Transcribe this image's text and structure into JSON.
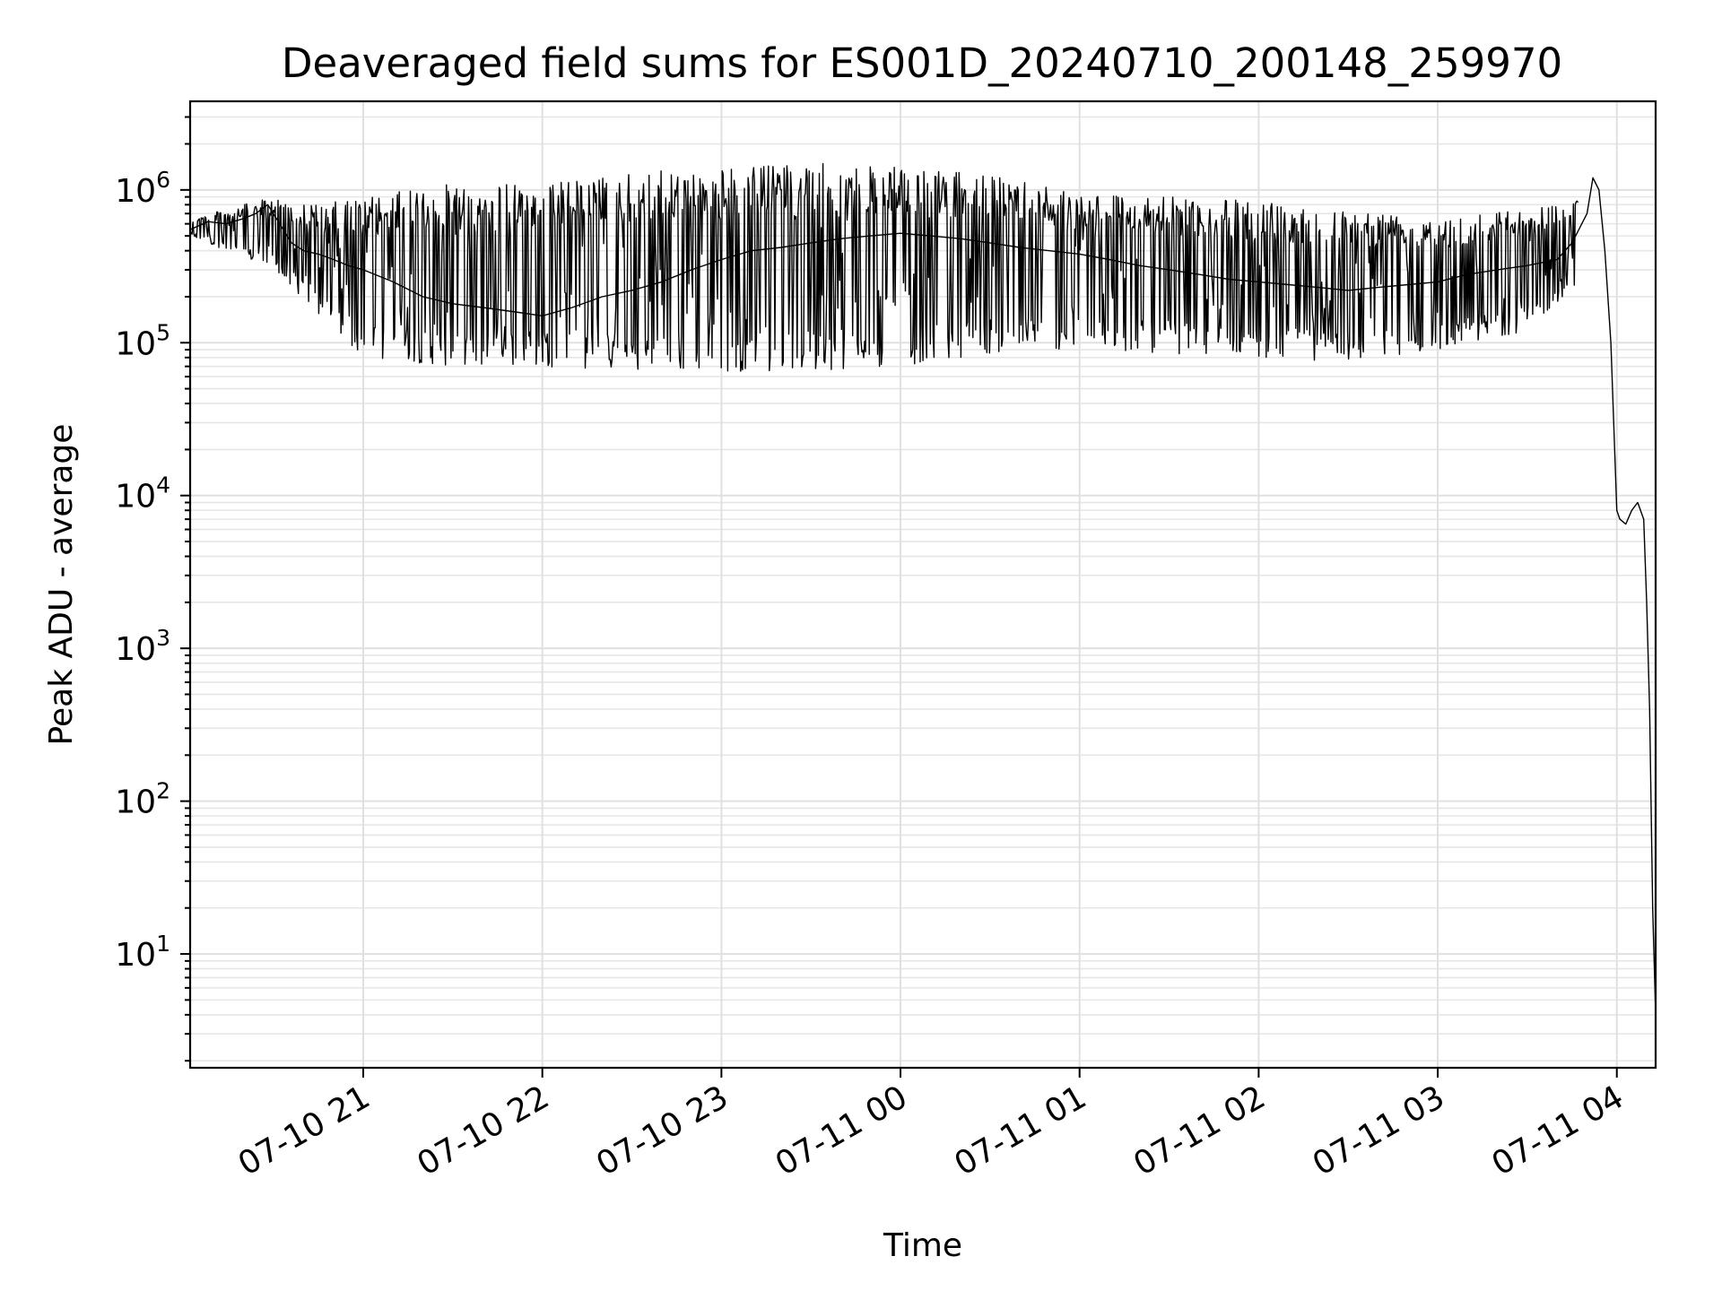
{
  "chart_data": {
    "type": "line",
    "title": "Deaveraged field sums for ES001D_20240710_200148_259970",
    "xlabel": "Time",
    "ylabel": "Peak ADU - average",
    "y_scale": "log",
    "ylim": [
      1.8,
      3800000
    ],
    "xlim": [
      "2024-07-10 20:02",
      "2024-07-11 04:13"
    ],
    "grid": true,
    "x_ticks": [
      {
        "value": "2024-07-10 21:00",
        "label": "07-10 21"
      },
      {
        "value": "2024-07-10 22:00",
        "label": "07-10 22"
      },
      {
        "value": "2024-07-10 23:00",
        "label": "07-10 23"
      },
      {
        "value": "2024-07-11 00:00",
        "label": "07-11 00"
      },
      {
        "value": "2024-07-11 01:00",
        "label": "07-11 01"
      },
      {
        "value": "2024-07-11 02:00",
        "label": "07-11 02"
      },
      {
        "value": "2024-07-11 03:00",
        "label": "07-11 03"
      },
      {
        "value": "2024-07-11 04:00",
        "label": "07-11 04"
      }
    ],
    "y_ticks": [
      {
        "value": 10,
        "base": "10",
        "exp": "1"
      },
      {
        "value": 100,
        "base": "10",
        "exp": "2"
      },
      {
        "value": 1000,
        "base": "10",
        "exp": "3"
      },
      {
        "value": 10000,
        "base": "10",
        "exp": "4"
      },
      {
        "value": 100000,
        "base": "10",
        "exp": "5"
      },
      {
        "value": 1000000,
        "base": "10",
        "exp": "6"
      }
    ],
    "series": [
      {
        "color": "#000000",
        "x": [
          "2024-07-10 20:02",
          "2024-07-10 20:08",
          "2024-07-10 20:14",
          "2024-07-10 20:20",
          "2024-07-10 20:24",
          "2024-07-10 20:28",
          "2024-07-10 20:32",
          "2024-07-10 20:36",
          "2024-07-10 20:40",
          "2024-07-10 20:45",
          "2024-07-10 20:50",
          "2024-07-10 20:55",
          "2024-07-10 21:00",
          "2024-07-10 21:10",
          "2024-07-10 21:20",
          "2024-07-10 21:30",
          "2024-07-10 21:40",
          "2024-07-10 21:50",
          "2024-07-10 22:00",
          "2024-07-10 22:10",
          "2024-07-10 22:20",
          "2024-07-10 22:30",
          "2024-07-10 22:40",
          "2024-07-10 22:50",
          "2024-07-10 23:00",
          "2024-07-10 23:10",
          "2024-07-10 23:20",
          "2024-07-10 23:30",
          "2024-07-10 23:40",
          "2024-07-10 23:50",
          "2024-07-11 00:00",
          "2024-07-11 00:10",
          "2024-07-11 00:20",
          "2024-07-11 00:30",
          "2024-07-11 00:40",
          "2024-07-11 00:50",
          "2024-07-11 01:00",
          "2024-07-11 01:10",
          "2024-07-11 01:20",
          "2024-07-11 01:30",
          "2024-07-11 01:40",
          "2024-07-11 01:50",
          "2024-07-11 02:00",
          "2024-07-11 02:10",
          "2024-07-11 02:20",
          "2024-07-11 02:30",
          "2024-07-11 02:40",
          "2024-07-11 02:50",
          "2024-07-11 03:00",
          "2024-07-11 03:10",
          "2024-07-11 03:20",
          "2024-07-11 03:30",
          "2024-07-11 03:40",
          "2024-07-11 03:45",
          "2024-07-11 03:50",
          "2024-07-11 03:52",
          "2024-07-11 03:54",
          "2024-07-11 03:56",
          "2024-07-11 03:58",
          "2024-07-11 04:00",
          "2024-07-11 04:01",
          "2024-07-11 04:03",
          "2024-07-11 04:05",
          "2024-07-11 04:07",
          "2024-07-11 04:09",
          "2024-07-11 04:10",
          "2024-07-11 04:11",
          "2024-07-11 04:12",
          "2024-07-11 04:13"
        ],
        "y": [
          550000,
          620000,
          600000,
          650000,
          700000,
          800000,
          600000,
          450000,
          400000,
          380000,
          350000,
          320000,
          300000,
          250000,
          200000,
          180000,
          170000,
          160000,
          150000,
          170000,
          200000,
          220000,
          250000,
          300000,
          350000,
          400000,
          420000,
          450000,
          480000,
          500000,
          520000,
          500000,
          480000,
          450000,
          420000,
          400000,
          380000,
          350000,
          320000,
          300000,
          280000,
          260000,
          250000,
          240000,
          230000,
          220000,
          230000,
          240000,
          250000,
          280000,
          300000,
          320000,
          350000,
          450000,
          700000,
          1200000,
          1000000,
          400000,
          100000,
          8000,
          7000,
          6500,
          8000,
          9000,
          7000,
          2000,
          400,
          20,
          4
        ]
      }
    ],
    "envelope": {
      "x": [
        "2024-07-10 20:02",
        "2024-07-10 20:30",
        "2024-07-10 20:45",
        "2024-07-10 21:00",
        "2024-07-10 21:30",
        "2024-07-10 22:00",
        "2024-07-10 22:30",
        "2024-07-10 23:00",
        "2024-07-10 23:30",
        "2024-07-11 00:00",
        "2024-07-11 00:20",
        "2024-07-11 00:40",
        "2024-07-11 01:00",
        "2024-07-11 01:30",
        "2024-07-11 02:00",
        "2024-07-11 02:30",
        "2024-07-11 03:00",
        "2024-07-11 03:30",
        "2024-07-11 03:47"
      ],
      "upper": [
        650000,
        900000,
        800000,
        900000,
        1100000,
        1100000,
        1300000,
        1400000,
        1500000,
        1400000,
        1300000,
        1200000,
        1000000,
        900000,
        850000,
        750000,
        700000,
        750000,
        900000
      ],
      "lower": [
        500000,
        300000,
        150000,
        80000,
        70000,
        70000,
        65000,
        65000,
        65000,
        70000,
        80000,
        90000,
        90000,
        85000,
        80000,
        75000,
        90000,
        120000,
        250000
      ]
    }
  }
}
